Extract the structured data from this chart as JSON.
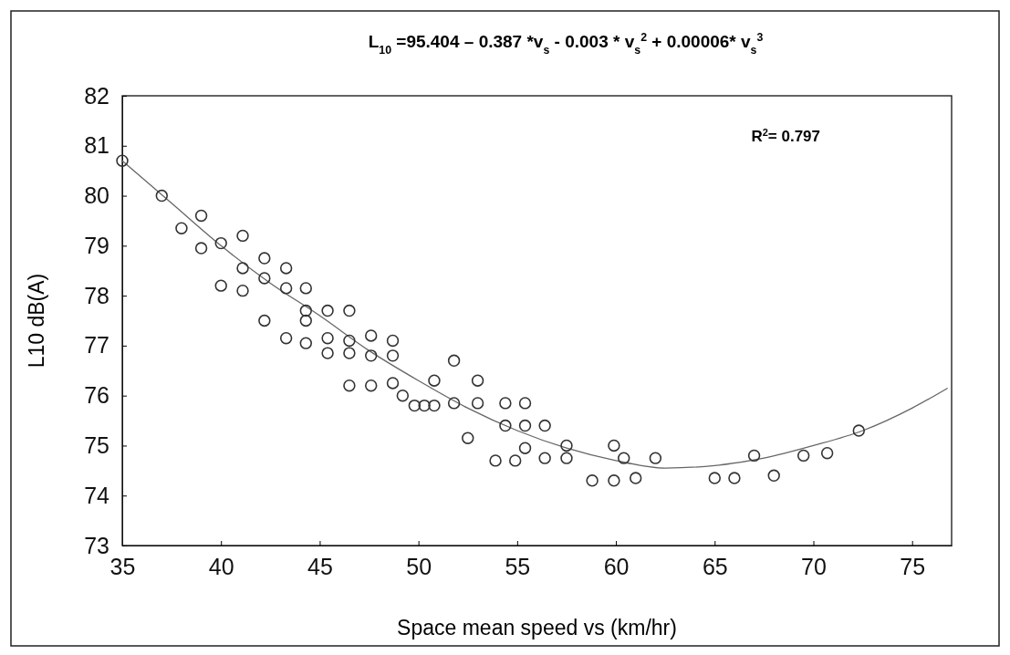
{
  "chart_data": {
    "type": "scatter",
    "xlabel": "Space mean speed vs (km/hr)",
    "ylabel": "L10 dB(A)",
    "annotations": [
      "L$_{10}$ =95.404 – 0.387 *v$_{s}$  - 0.003 * v$_{s}$$^{2}$  + 0.00006* v$_{s}$$^{3}$",
      "R$^{2}$= 0.797"
    ],
    "xlim": [
      35,
      77
    ],
    "xticks": [
      35,
      40,
      45,
      50,
      55,
      60,
      65,
      70,
      75
    ],
    "ylim": [
      73,
      82
    ],
    "yticks": [
      73,
      74,
      75,
      76,
      77,
      78,
      79,
      80,
      81,
      82
    ],
    "grid": false,
    "marker": "circle",
    "series": [
      {
        "color": "#333333",
        "x": [
          35,
          37,
          38,
          39,
          39,
          40,
          40,
          41.1,
          41.1,
          41.1,
          42.2,
          42.2,
          42.2,
          43.3,
          43.3,
          43.3,
          44.3,
          44.3,
          44.3,
          44.3,
          45.4,
          45.4,
          45.4,
          46.5,
          46.5,
          46.5,
          46.5,
          47.6,
          47.6,
          47.6,
          48.7,
          48.7,
          48.7,
          49.2,
          49.8,
          50.3,
          50.8,
          50.8,
          51.8,
          51.8,
          52.5,
          53,
          53,
          53.9,
          54.4,
          54.4,
          54.9,
          55.4,
          55.4,
          55.4,
          56.4,
          56.4,
          57.5,
          57.5,
          58.8,
          59.9,
          59.9,
          60.4,
          61,
          62,
          65,
          66,
          67,
          68,
          69.5,
          70.7,
          72.3
        ],
        "values": [
          80.7,
          80.0,
          79.35,
          79.6,
          78.95,
          79.05,
          78.2,
          79.2,
          78.55,
          78.1,
          78.75,
          78.35,
          77.5,
          78.55,
          78.15,
          77.15,
          78.15,
          77.7,
          77.5,
          77.05,
          77.7,
          77.15,
          76.85,
          77.7,
          77.1,
          76.85,
          76.2,
          77.2,
          76.8,
          76.2,
          77.1,
          76.8,
          76.25,
          76.0,
          75.8,
          75.8,
          75.8,
          76.3,
          76.7,
          75.85,
          75.15,
          76.3,
          75.85,
          74.7,
          75.85,
          75.4,
          74.7,
          75.85,
          75.4,
          74.95,
          75.4,
          74.75,
          75.0,
          74.75,
          74.3,
          75.0,
          74.3,
          74.75,
          74.35,
          74.75,
          74.35,
          74.35,
          74.8,
          74.4,
          74.8,
          74.85,
          75.3
        ]
      },
      {
        "type": "line",
        "color": "#666666",
        "marker": "none",
        "line_style": "solid",
        "x": [
          35,
          37.5,
          40,
          42.5,
          45,
          47.5,
          50,
          52.5,
          55,
          57.5,
          60,
          62.5,
          65,
          67.5,
          70,
          72.5,
          75,
          76.8
        ],
        "values": [
          80.7,
          79.85,
          79.0,
          78.25,
          77.6,
          76.9,
          76.3,
          75.75,
          75.3,
          74.95,
          74.7,
          74.55,
          74.6,
          74.75,
          75.0,
          75.3,
          75.75,
          76.15
        ]
      }
    ]
  }
}
